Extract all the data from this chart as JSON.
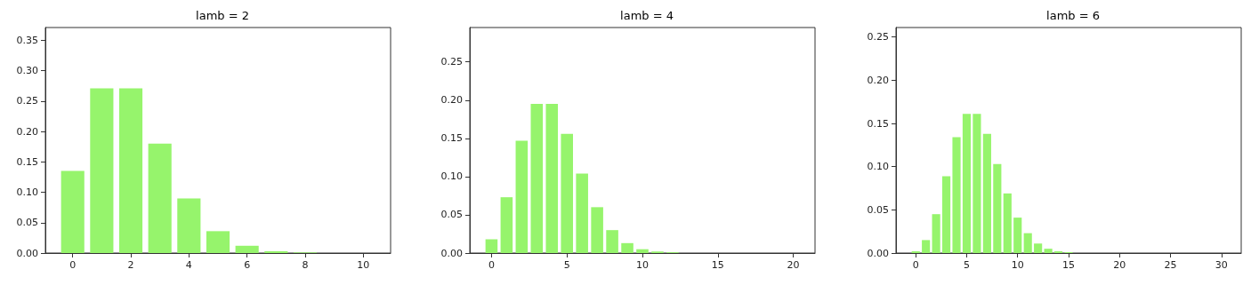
{
  "chart_data": [
    {
      "type": "bar",
      "title": "lamb = 2",
      "color": "#96f46c",
      "x": [
        0,
        1,
        2,
        3,
        4,
        5,
        6,
        7,
        8,
        9,
        10
      ],
      "values": [
        0.135,
        0.271,
        0.271,
        0.18,
        0.09,
        0.036,
        0.012,
        0.003,
        0.001,
        0,
        0
      ],
      "xlim": [
        -0.94,
        10.94
      ],
      "xticks": [
        0,
        2,
        4,
        6,
        8,
        10
      ],
      "ylim": [
        0,
        0.371
      ],
      "yticks": [
        {
          "value": 0,
          "label": "0.00"
        },
        0.05,
        {
          "value": 0.1,
          "label": "0.10"
        },
        0.15,
        {
          "value": 0.2,
          "label": "0.20"
        },
        0.25,
        {
          "value": 0.3,
          "label": "0.30"
        },
        0.35
      ],
      "grid": false
    },
    {
      "type": "bar",
      "title": "lamb = 4",
      "color": "#96f46c",
      "x": [
        0,
        1,
        2,
        3,
        4,
        5,
        6,
        7,
        8,
        9,
        10,
        11,
        12,
        13,
        14,
        15,
        16,
        17,
        18,
        19,
        20
      ],
      "values": [
        0.018,
        0.073,
        0.147,
        0.195,
        0.195,
        0.156,
        0.104,
        0.06,
        0.03,
        0.013,
        0.005,
        0.002,
        0.001,
        0,
        0,
        0,
        0,
        0,
        0,
        0,
        0
      ],
      "xlim": [
        -1.44,
        21.44
      ],
      "xticks": [
        0,
        5,
        10,
        15,
        20
      ],
      "ylim": [
        0,
        0.295
      ],
      "yticks": [
        {
          "value": 0,
          "label": "0.00"
        },
        0.05,
        {
          "value": 0.1,
          "label": "0.10"
        },
        0.15,
        {
          "value": 0.2,
          "label": "0.20"
        },
        0.25
      ],
      "grid": false
    },
    {
      "type": "bar",
      "title": "lamb = 6",
      "color": "#96f46c",
      "x": [
        0,
        1,
        2,
        3,
        4,
        5,
        6,
        7,
        8,
        9,
        10,
        11,
        12,
        13,
        14,
        15,
        16,
        17,
        18,
        19,
        20,
        21,
        22,
        23,
        24,
        25,
        26,
        27,
        28,
        29,
        30
      ],
      "values": [
        0.002,
        0.015,
        0.045,
        0.089,
        0.134,
        0.161,
        0.161,
        0.138,
        0.103,
        0.069,
        0.041,
        0.023,
        0.011,
        0.005,
        0.002,
        0.001,
        0,
        0,
        0,
        0,
        0,
        0,
        0,
        0,
        0,
        0,
        0,
        0,
        0,
        0,
        0
      ],
      "xlim": [
        -1.94,
        31.94
      ],
      "xticks": [
        0,
        5,
        10,
        15,
        20,
        25,
        30
      ],
      "ylim": [
        0,
        0.261
      ],
      "yticks": [
        {
          "value": 0,
          "label": "0.00"
        },
        0.05,
        {
          "value": 0.1,
          "label": "0.10"
        },
        0.15,
        {
          "value": 0.2,
          "label": "0.20"
        },
        0.25
      ],
      "grid": false
    }
  ]
}
